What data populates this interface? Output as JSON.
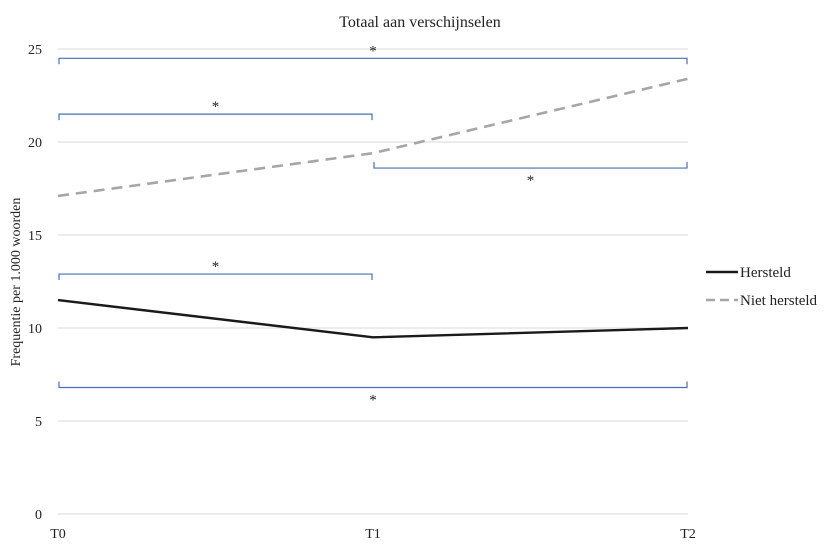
{
  "chart_data": {
    "type": "line",
    "title": "Totaal aan verschijnselen",
    "xlabel": "",
    "ylabel": "Frequentie per 1.000 woorden",
    "categories": [
      "T0",
      "T1",
      "T2"
    ],
    "ylim": [
      0,
      25
    ],
    "yticks": [
      0,
      5,
      10,
      15,
      20,
      25
    ],
    "grid": true,
    "legend_position": "right",
    "series": [
      {
        "name": "Hersteld",
        "values": [
          11.5,
          9.5,
          10.0
        ],
        "color": "#1a1a1a",
        "style": "solid"
      },
      {
        "name": "Niet hersteld",
        "values": [
          17.1,
          19.4,
          23.4
        ],
        "color": "#a6a6a6",
        "style": "dashed"
      }
    ],
    "significance_brackets": [
      {
        "from": "T0",
        "to": "T2",
        "y": 24.5,
        "label": "*",
        "orientation": "down"
      },
      {
        "from": "T0",
        "to": "T1",
        "y": 21.5,
        "label": "*",
        "orientation": "down"
      },
      {
        "from": "T1",
        "to": "T2",
        "y": 18.6,
        "label": "*",
        "orientation": "up"
      },
      {
        "from": "T0",
        "to": "T1",
        "y": 12.9,
        "label": "*",
        "orientation": "down"
      },
      {
        "from": "T0",
        "to": "T2",
        "y": 6.8,
        "label": "*",
        "orientation": "up"
      }
    ],
    "bracket_color": "#4a6fb0"
  }
}
